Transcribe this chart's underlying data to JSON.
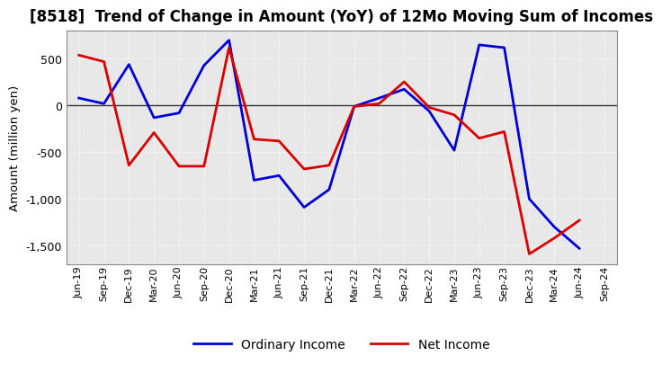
{
  "title": "[8518]  Trend of Change in Amount (YoY) of 12Mo Moving Sum of Incomes",
  "ylabel": "Amount (million yen)",
  "x_labels": [
    "Jun-19",
    "Sep-19",
    "Dec-19",
    "Mar-20",
    "Jun-20",
    "Sep-20",
    "Dec-20",
    "Mar-21",
    "Jun-21",
    "Sep-21",
    "Dec-21",
    "Mar-22",
    "Jun-22",
    "Sep-22",
    "Dec-22",
    "Mar-23",
    "Jun-23",
    "Sep-23",
    "Dec-23",
    "Mar-24",
    "Jun-24",
    "Sep-24"
  ],
  "ordinary_income": [
    80,
    20,
    440,
    -130,
    -80,
    430,
    700,
    -800,
    -750,
    -1090,
    -900,
    -10,
    80,
    175,
    -60,
    -480,
    650,
    620,
    -1000,
    -1300,
    -1530,
    null
  ],
  "net_income": [
    540,
    470,
    -640,
    -290,
    -650,
    -650,
    620,
    -360,
    -380,
    -680,
    -640,
    -10,
    20,
    255,
    -20,
    -100,
    -350,
    -280,
    -1590,
    -1420,
    -1230,
    null
  ],
  "ordinary_income_color": "#0000dd",
  "net_income_color": "#dd0000",
  "ylim": [
    -1700,
    800
  ],
  "yticks": [
    -1500,
    -1000,
    -500,
    0,
    500
  ],
  "plot_bg_color": "#e8e8e8",
  "fig_bg_color": "#ffffff",
  "grid_color": "#ffffff",
  "legend_labels": [
    "Ordinary Income",
    "Net Income"
  ],
  "linewidth": 2.0
}
